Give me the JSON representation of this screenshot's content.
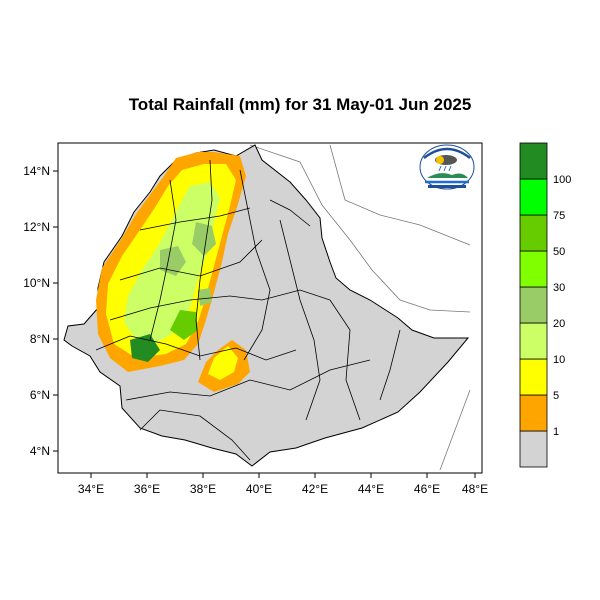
{
  "title": "Total Rainfall (mm) for 31 May-01 Jun 2025",
  "axes": {
    "lon_ticks": [
      "34°E",
      "36°E",
      "38°E",
      "40°E",
      "42°E",
      "44°E",
      "46°E",
      "48°E"
    ],
    "lat_ticks": [
      "4°N",
      "6°N",
      "8°N",
      "10°N",
      "12°N",
      "14°N"
    ],
    "lon_range": [
      33,
      48.3
    ],
    "lat_range": [
      3.2,
      15
    ]
  },
  "legend": {
    "levels": [
      "1",
      "5",
      "10",
      "20",
      "30",
      "50",
      "75",
      "100"
    ],
    "colors": [
      "#d3d3d3",
      "#ffa500",
      "#ffff00",
      "#ccff66",
      "#99cc66",
      "#80ff00",
      "#66cc00",
      "#00ff00",
      "#228b22"
    ]
  },
  "logo": {
    "name": "ethiopian-meteorology-institute-logo",
    "header_text": "ኢትዮጵያ ሚቲዎሮሎጂ ኢንስቲትዩት",
    "footer_text": "Ethiopian Meteorology Institute"
  }
}
